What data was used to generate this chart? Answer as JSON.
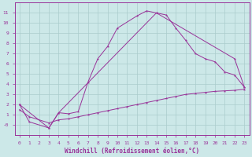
{
  "xlabel": "Windchill (Refroidissement éolien,°C)",
  "background_color": "#cce8e8",
  "line_color": "#993399",
  "grid_color": "#aacccc",
  "xlim": [
    -0.5,
    23.5
  ],
  "ylim": [
    -1.0,
    12.0
  ],
  "xticks": [
    0,
    1,
    2,
    3,
    4,
    5,
    6,
    7,
    8,
    9,
    10,
    11,
    12,
    13,
    14,
    15,
    16,
    17,
    18,
    19,
    20,
    21,
    22,
    23
  ],
  "yticks": [
    0,
    1,
    2,
    3,
    4,
    5,
    6,
    7,
    8,
    9,
    10,
    11
  ],
  "ytick_labels": [
    "-0",
    "1",
    "2",
    "3",
    "4",
    "5",
    "6",
    "7",
    "8",
    "9",
    "10",
    "11"
  ],
  "line1_x": [
    0,
    1,
    3,
    4,
    5,
    6,
    7,
    8,
    9,
    10,
    12,
    13,
    14,
    15,
    16,
    17,
    18,
    19,
    20,
    21,
    22,
    23
  ],
  "line1_y": [
    2.0,
    0.3,
    -0.3,
    1.2,
    1.1,
    1.3,
    4.2,
    6.5,
    7.7,
    9.5,
    10.7,
    11.2,
    11.0,
    10.8,
    9.5,
    8.3,
    7.0,
    6.5,
    6.2,
    5.2,
    4.9,
    3.7
  ],
  "line2_x": [
    0,
    3,
    4,
    14,
    22,
    23
  ],
  "line2_y": [
    2.0,
    -0.3,
    1.2,
    11.0,
    6.5,
    3.7
  ],
  "line3_x": [
    0,
    1,
    3,
    4,
    5,
    6,
    7,
    8,
    9,
    10,
    11,
    12,
    13,
    14,
    15,
    16,
    17,
    18,
    19,
    20,
    21,
    22,
    23
  ],
  "line3_y": [
    1.5,
    0.8,
    0.2,
    0.5,
    0.6,
    0.8,
    1.0,
    1.2,
    1.4,
    1.6,
    1.8,
    2.0,
    2.2,
    2.4,
    2.6,
    2.8,
    3.0,
    3.1,
    3.2,
    3.3,
    3.35,
    3.4,
    3.5
  ]
}
